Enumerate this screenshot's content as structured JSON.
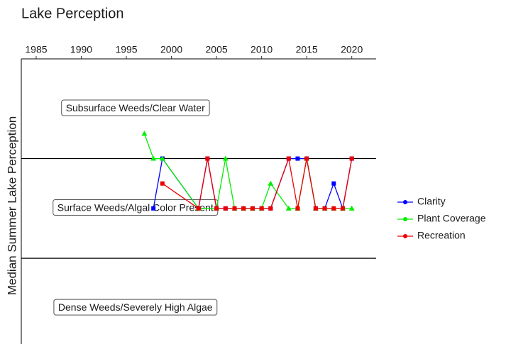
{
  "chart_data": {
    "type": "line",
    "title": "Lake Perception",
    "y_label": "Median Summer Lake Perception",
    "xlim": [
      1983.35,
      2022.7
    ],
    "xticks": [
      1985,
      1990,
      1995,
      2000,
      2005,
      2010,
      2015,
      2020
    ],
    "ylim": [
      0.5,
      3.36
    ],
    "y_reversed": true,
    "hlines": [
      1.5,
      2.5
    ],
    "annotations": [
      {
        "text": "Subsurface Weeds/Clear Water",
        "x": 1996,
        "y": 1
      },
      {
        "text": "Surface Weeds/Algal Color Present",
        "x": 1996,
        "y": 2
      },
      {
        "text": "Dense Weeds/Severely High Algae",
        "x": 1996,
        "y": 3
      }
    ],
    "legend": "right",
    "series": [
      {
        "name": "Clarity",
        "color": "#0000ff",
        "marker": "square",
        "x": [
          1998,
          1999,
          2003,
          2004,
          2005,
          2006,
          2007,
          2008,
          2009,
          2010,
          2011,
          2013,
          2014,
          2015,
          2016,
          2017,
          2018,
          2019,
          2020
        ],
        "values": [
          2,
          1.5,
          2,
          1.5,
          2,
          2,
          2,
          2,
          2,
          2,
          2,
          1.5,
          1.5,
          1.5,
          2,
          2,
          1.75,
          2,
          1.5
        ]
      },
      {
        "name": "Plant Coverage",
        "color": "#00ee00",
        "marker": "triangle",
        "x": [
          1997,
          1998,
          1999,
          2003,
          2005,
          2006,
          2007,
          2008,
          2009,
          2010,
          2011,
          2013,
          2014,
          2015,
          2016,
          2017,
          2018,
          2019,
          2020
        ],
        "values": [
          1.25,
          1.5,
          1.5,
          2,
          2,
          1.5,
          2,
          2,
          2,
          2,
          1.75,
          2,
          2,
          1.5,
          2,
          2,
          2,
          2,
          2
        ]
      },
      {
        "name": "Recreation",
        "color": "#ee0000",
        "marker": "square",
        "x": [
          1999,
          2003,
          2004,
          2005,
          2006,
          2007,
          2008,
          2009,
          2010,
          2011,
          2013,
          2014,
          2015,
          2016,
          2017,
          2018,
          2019,
          2020
        ],
        "values": [
          1.75,
          2,
          1.5,
          2,
          2,
          2,
          2,
          2,
          2,
          2,
          1.5,
          2,
          1.5,
          2,
          2,
          2,
          2,
          1.5
        ]
      }
    ]
  }
}
